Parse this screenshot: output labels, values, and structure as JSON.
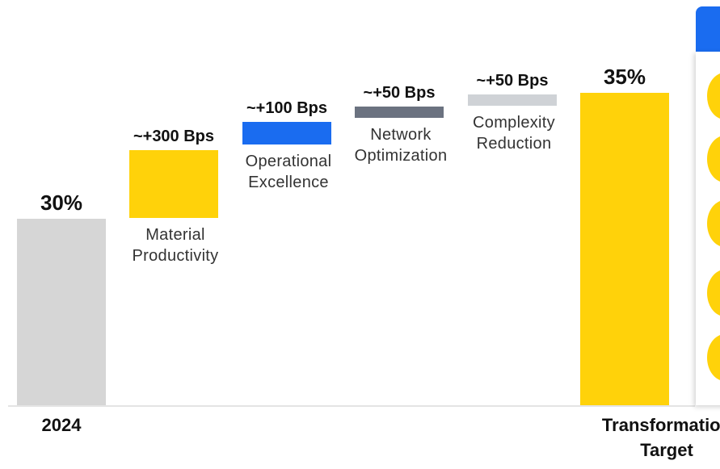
{
  "chart_data": {
    "type": "waterfall",
    "unit": "%",
    "ylim": [
      0,
      38
    ],
    "steps": [
      {
        "name": "2024",
        "kind": "total",
        "value": 30,
        "value_label": "30%",
        "category_label": "2024",
        "color": "#d6d6d6"
      },
      {
        "name": "Material Productivity",
        "kind": "delta",
        "value": 3.0,
        "value_label": "~+300 Bps",
        "step_label": [
          "Material",
          "Productivity"
        ],
        "color": "#ffd20a"
      },
      {
        "name": "Operational Excellence",
        "kind": "delta",
        "value": 1.0,
        "value_label": "~+100 Bps",
        "step_label": [
          "Operational",
          "Excellence"
        ],
        "color": "#1a6cf0"
      },
      {
        "name": "Network Optimization",
        "kind": "delta",
        "value": 0.5,
        "value_label": "~+50 Bps",
        "step_label": [
          "Network",
          "Optimization"
        ],
        "color": "#6b7280"
      },
      {
        "name": "Complexity Reduction",
        "kind": "delta",
        "value": 0.5,
        "value_label": "~+50 Bps",
        "step_label": [
          "Complexity",
          "Reduction"
        ],
        "color": "#cfd2d6"
      },
      {
        "name": "Transformation Target",
        "kind": "total",
        "value": 35,
        "value_label": "35%",
        "category_label": [
          "Transformation",
          "Target"
        ],
        "color": "#ffd20a"
      }
    ]
  },
  "side_panel": {
    "tab_color": "#1a6cf0",
    "icon_color": "#ffd20a",
    "icons": [
      "yellow-circle-icon",
      "yellow-circle-icon",
      "yellow-circle-icon",
      "yellow-circle-icon",
      "yellow-circle-icon"
    ]
  }
}
